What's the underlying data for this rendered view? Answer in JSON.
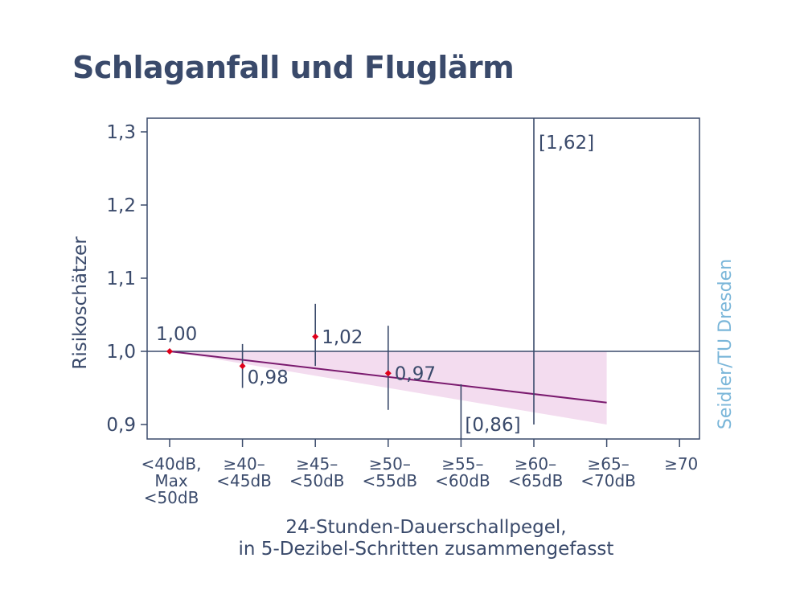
{
  "chart_data": {
    "type": "scatter",
    "title": "Schlaganfall und Fluglärm",
    "ylabel": "Risikoschätzer",
    "xlabel": [
      "24-Stunden-Dauerschallpegel,",
      "in 5-Dezibel-Schritten zusammengefasst"
    ],
    "credit": "Seidler/TU Dresden",
    "ylim": [
      0.9,
      1.32
    ],
    "yticks": [
      0.9,
      1.0,
      1.1,
      1.2,
      1.3
    ],
    "ytick_labels": [
      "0,9",
      "1,0",
      "1,1",
      "1,2",
      "1,3"
    ],
    "categories": [
      [
        "<40dB,",
        "Max",
        "<50dB"
      ],
      [
        "≥40–",
        "<45dB"
      ],
      [
        "≥45–",
        "<50dB"
      ],
      [
        "≥50–",
        "<55dB"
      ],
      [
        "≥55–",
        "<60dB"
      ],
      [
        "≥60–",
        "<65dB"
      ],
      [
        "≥65–",
        "<70dB"
      ],
      [
        "≥70"
      ]
    ],
    "points": [
      {
        "category_index": 0,
        "estimate": 1.0,
        "label": "1,00"
      },
      {
        "category_index": 1,
        "estimate": 0.98,
        "ci": [
          0.95,
          1.01
        ],
        "label": "0,98"
      },
      {
        "category_index": 2,
        "estimate": 1.02,
        "ci": [
          0.98,
          1.065
        ],
        "label": "1,02"
      },
      {
        "category_index": 3,
        "estimate": 0.97,
        "ci": [
          0.92,
          1.035
        ],
        "label": "0,97"
      },
      {
        "category_index": 4,
        "ci": [
          0.86,
          0.955
        ],
        "ci_label": "[0,86]"
      },
      {
        "category_index": 5,
        "ci": [
          0.9,
          1.62
        ],
        "ci_label": "[1,62]"
      }
    ],
    "trend_line": {
      "start": [
        0,
        1.0
      ],
      "end": [
        6,
        0.93
      ]
    },
    "trend_band": {
      "lower_end": [
        6,
        0.9
      ],
      "upper": 1.0
    },
    "reference_line": 1.0,
    "colors": {
      "axis": "#3a4a6b",
      "point": "#e0001b",
      "trend": "#7a1a6e",
      "band": "#f3dcef",
      "credit": "#7ab6d9"
    }
  }
}
